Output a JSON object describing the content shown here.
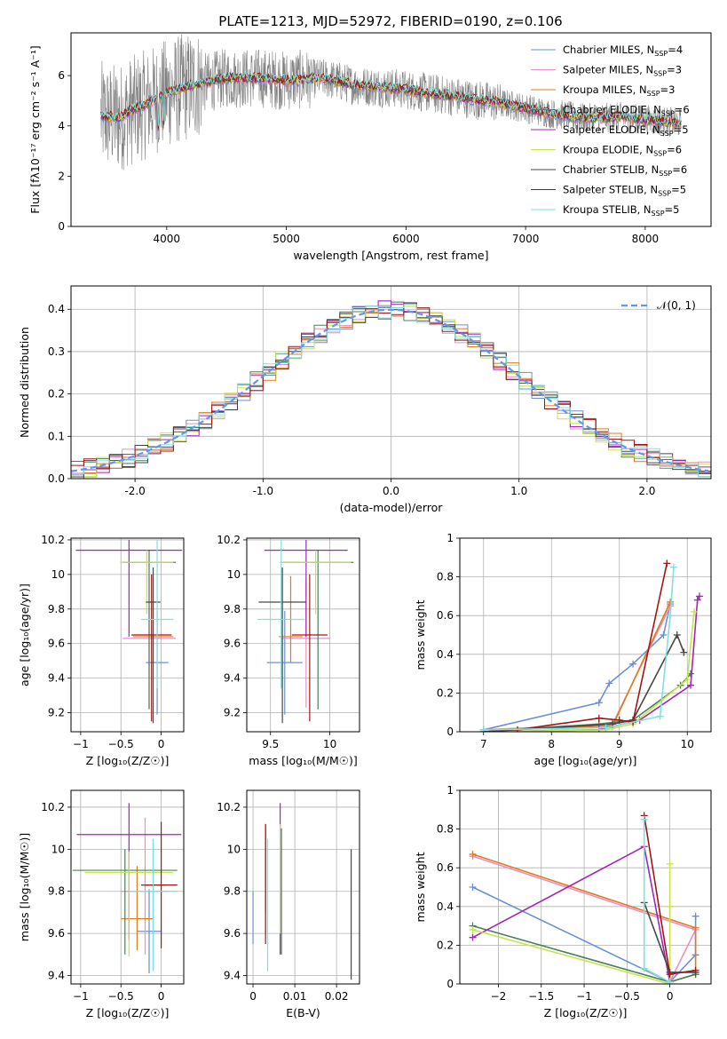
{
  "title": "PLATE=1213, MJD=52972, FIBERID=0190, z=0.106",
  "colors": {
    "axis": "#000000",
    "grid": "#b0b0b0",
    "data_spectrum": "#808080",
    "normal_curve": "#6495ed"
  },
  "models": [
    {
      "name": "Chabrier MILES",
      "nssp": "4",
      "color": "#6a8fd9"
    },
    {
      "name": "Salpeter MILES",
      "nssp": "3",
      "color": "#e68fc8"
    },
    {
      "name": "Kroupa MILES",
      "nssp": "3",
      "color": "#e07b1a"
    },
    {
      "name": "Chabrier ELODIE",
      "nssp": "6",
      "color": "#4a7f5a"
    },
    {
      "name": "Salpeter ELODIE",
      "nssp": "5",
      "color": "#a324b8"
    },
    {
      "name": "Kroupa ELODIE",
      "nssp": "6",
      "color": "#c5e34a"
    },
    {
      "name": "Chabrier STELIB",
      "nssp": "6",
      "color": "#474747"
    },
    {
      "name": "Salpeter STELIB",
      "nssp": "5",
      "color": "#a31515"
    },
    {
      "name": "Kroupa STELIB",
      "nssp": "5",
      "color": "#7fe0e0"
    }
  ],
  "chart_data": [
    {
      "id": "spectrum",
      "type": "line",
      "xlabel": "wavelength [Angstrom, rest frame]",
      "ylabel": "Flux [fλ10⁻¹⁷ erg cm⁻² s⁻¹ A⁻¹]",
      "xlim": [
        3200,
        8550
      ],
      "ylim": [
        0,
        7.7
      ],
      "xticks": [
        4000,
        5000,
        6000,
        7000,
        8000
      ],
      "yticks": [
        0,
        2,
        4,
        6
      ],
      "grid": false,
      "legend": "right",
      "continuum": {
        "x": [
          3450,
          3600,
          3700,
          3850,
          4000,
          4200,
          4500,
          4800,
          5000,
          5300,
          5600,
          5900,
          6200,
          6500,
          6800,
          7000,
          7200,
          7500,
          7800,
          8100,
          8300
        ],
        "y": [
          4.4,
          4.3,
          4.6,
          4.9,
          5.3,
          5.6,
          5.9,
          5.9,
          5.8,
          5.9,
          5.6,
          5.5,
          5.3,
          5.1,
          4.9,
          4.7,
          4.5,
          4.3,
          4.35,
          4.2,
          4.1
        ]
      }
    },
    {
      "id": "residuals",
      "type": "line",
      "xlabel": "(data-model)/error",
      "ylabel": "Normed distribution",
      "xlim": [
        -2.5,
        2.5
      ],
      "ylim": [
        0,
        0.455
      ],
      "xticks": [
        -2,
        -1,
        0,
        1,
        2
      ],
      "yticks": [
        0.0,
        0.1,
        0.2,
        0.3,
        0.4
      ],
      "grid": true,
      "legend": "top-right",
      "normal_label": "𝒩(0, 1)",
      "bin_width": 0.1
    },
    {
      "id": "age_vs_Z",
      "type": "scatter",
      "xlabel": "Z [log₁₀(Z/Z☉)]",
      "ylabel": "age  [log₁₀(age/yr)]",
      "xlim": [
        -1.12,
        0.28
      ],
      "ylim": [
        9.09,
        10.21
      ],
      "xticks": [
        -1.0,
        -0.5,
        0.0
      ],
      "yticks": [
        9.2,
        9.4,
        9.6,
        9.8,
        10.0,
        10.2
      ],
      "grid": true,
      "points": [
        {
          "x": -0.05,
          "y": 9.49,
          "xerr": 0.14,
          "yerr": [
            0.3,
            0.3
          ]
        },
        {
          "x": -0.15,
          "y": 9.63,
          "xerr": 0.33,
          "yerr": [
            0.4,
            0.35
          ]
        },
        {
          "x": -0.1,
          "y": 9.64,
          "xerr": 0.25,
          "yerr": [
            0.15,
            0.35
          ]
        },
        {
          "x": -0.15,
          "y": 10.07,
          "xerr": 0.33,
          "yerr": [
            0.85,
            0.07
          ]
        },
        {
          "x": -0.4,
          "y": 10.14,
          "xerr": 0.66,
          "yerr": [
            0.5,
            0.06
          ]
        },
        {
          "x": -0.18,
          "y": 10.07,
          "xerr": 0.33,
          "yerr": [
            0.3,
            0.07
          ]
        },
        {
          "x": -0.1,
          "y": 9.84,
          "xerr": 0.09,
          "yerr": [
            0.7,
            0.2
          ]
        },
        {
          "x": -0.12,
          "y": 9.65,
          "xerr": 0.25,
          "yerr": [
            0.5,
            0.35
          ]
        },
        {
          "x": -0.05,
          "y": 9.74,
          "xerr": 0.2,
          "yerr": [
            0.4,
            0.46
          ]
        }
      ]
    },
    {
      "id": "age_vs_mass",
      "type": "scatter",
      "xlabel": "mass [log₁₀(M/M☉)]",
      "ylabel": "",
      "xlim": [
        9.3,
        10.25
      ],
      "ylim": [
        9.09,
        10.21
      ],
      "xticks": [
        9.5,
        10.0
      ],
      "yticks": [
        9.2,
        9.4,
        9.6,
        9.8,
        10.0,
        10.2
      ],
      "grid": true,
      "points": [
        {
          "x": 9.62,
          "y": 9.49,
          "xerr": 0.15,
          "yerr": [
            0.3,
            0.3
          ]
        },
        {
          "x": 9.8,
          "y": 9.63,
          "xerr": 0.2,
          "yerr": [
            0.4,
            0.35
          ]
        },
        {
          "x": 9.67,
          "y": 9.64,
          "xerr": 0.1,
          "yerr": [
            0.15,
            0.35
          ]
        },
        {
          "x": 9.9,
          "y": 10.07,
          "xerr": 0.3,
          "yerr": [
            0.85,
            0.07
          ]
        },
        {
          "x": 9.8,
          "y": 10.14,
          "xerr": 0.35,
          "yerr": [
            0.5,
            0.06
          ]
        },
        {
          "x": 9.88,
          "y": 10.07,
          "xerr": 0.3,
          "yerr": [
            0.3,
            0.07
          ]
        },
        {
          "x": 9.6,
          "y": 9.84,
          "xerr": 0.2,
          "yerr": [
            0.7,
            0.2
          ]
        },
        {
          "x": 9.83,
          "y": 9.65,
          "xerr": 0.15,
          "yerr": [
            0.5,
            0.35
          ]
        },
        {
          "x": 9.59,
          "y": 9.74,
          "xerr": 0.2,
          "yerr": [
            0.4,
            0.46
          ]
        }
      ]
    },
    {
      "id": "massweight_vs_age",
      "type": "line",
      "xlabel": "age  [log₁₀(age/yr)]",
      "ylabel": "mass weight",
      "xlim": [
        6.65,
        10.35
      ],
      "ylim": [
        0,
        1.0
      ],
      "xticks": [
        7,
        8,
        9,
        10
      ],
      "yticks": [
        0.0,
        0.2,
        0.4,
        0.6,
        0.8,
        1.0
      ],
      "grid": true,
      "series": [
        {
          "x": [
            7.0,
            8.7,
            8.85,
            9.2,
            9.65,
            9.75
          ],
          "y": [
            0.01,
            0.15,
            0.25,
            0.35,
            0.5,
            0.66
          ]
        },
        {
          "x": [
            7.0,
            8.9,
            9.75
          ],
          "y": [
            0.01,
            0.04,
            0.65
          ]
        },
        {
          "x": [
            7.0,
            8.9,
            9.75
          ],
          "y": [
            0.01,
            0.03,
            0.67
          ]
        },
        {
          "x": [
            7.0,
            8.7,
            9.2,
            9.9,
            10.05
          ],
          "y": [
            0.0,
            0.04,
            0.06,
            0.24,
            0.3
          ]
        },
        {
          "x": [
            7.0,
            8.7,
            9.3,
            10.05,
            10.15,
            10.18
          ],
          "y": [
            0.0,
            0.01,
            0.06,
            0.24,
            0.68,
            0.7
          ]
        },
        {
          "x": [
            7.0,
            8.8,
            9.2,
            10.0,
            10.1
          ],
          "y": [
            0.0,
            0.01,
            0.04,
            0.27,
            0.62
          ]
        },
        {
          "x": [
            7.0,
            8.9,
            9.2,
            9.85,
            9.95
          ],
          "y": [
            0.0,
            0.04,
            0.06,
            0.5,
            0.41
          ]
        },
        {
          "x": [
            7.5,
            8.7,
            9.0,
            9.2,
            9.7
          ],
          "y": [
            0.01,
            0.07,
            0.06,
            0.05,
            0.87
          ]
        },
        {
          "x": [
            7.0,
            8.8,
            9.6,
            9.75,
            9.8
          ],
          "y": [
            0.01,
            0.02,
            0.08,
            0.6,
            0.85
          ]
        }
      ]
    },
    {
      "id": "mass_vs_Z",
      "type": "scatter",
      "xlabel": "Z [log₁₀(Z/Z☉)]",
      "ylabel": "mass [log₁₀(M/M☉)]",
      "xlim": [
        -1.12,
        0.28
      ],
      "ylim": [
        9.36,
        10.28
      ],
      "xticks": [
        -1.0,
        -0.5,
        0.0
      ],
      "yticks": [
        9.4,
        9.6,
        9.8,
        10.0,
        10.2
      ],
      "grid": true,
      "points": [
        {
          "x": -0.15,
          "y": 9.61,
          "xerr": 0.15,
          "yerr": [
            0.2,
            0.2
          ]
        },
        {
          "x": -0.2,
          "y": 9.8,
          "xerr": 0.3,
          "yerr": [
            0.3,
            0.35
          ]
        },
        {
          "x": -0.3,
          "y": 9.67,
          "xerr": 0.2,
          "yerr": [
            0.15,
            0.25
          ]
        },
        {
          "x": -0.45,
          "y": 9.9,
          "xerr": 0.65,
          "yerr": [
            0.4,
            0.1
          ]
        },
        {
          "x": -0.4,
          "y": 10.07,
          "xerr": 0.65,
          "yerr": [
            0.5,
            0.15
          ]
        },
        {
          "x": -0.4,
          "y": 9.89,
          "xerr": 0.55,
          "yerr": [
            0.4,
            0.1
          ]
        },
        {
          "x": -0.1,
          "y": 9.83,
          "xerr": 0.15,
          "yerr": [
            0.4,
            0.2
          ]
        },
        {
          "x": 0.0,
          "y": 9.83,
          "xerr": 0.2,
          "yerr": [
            0.3,
            0.3
          ]
        },
        {
          "x": -0.1,
          "y": 9.8,
          "xerr": 0.3,
          "yerr": [
            0.38,
            0.25
          ]
        }
      ]
    },
    {
      "id": "mass_vs_EBV",
      "type": "scatter",
      "xlabel": "E(B-V)",
      "ylabel": "",
      "xlim": [
        -0.0015,
        0.0255
      ],
      "ylim": [
        9.36,
        10.28
      ],
      "xticks": [
        0.0,
        0.01,
        0.02
      ],
      "yticks": [
        9.4,
        9.6,
        9.8,
        10.0,
        10.2
      ],
      "grid": true,
      "points": [
        {
          "x": 0.0,
          "y": 9.65,
          "yerr": [
            0.1,
            0.15
          ]
        },
        {
          "x": 0.003,
          "y": 9.8,
          "yerr": [
            0.2,
            0.3
          ]
        },
        {
          "x": 0.003,
          "y": 9.85,
          "yerr": [
            0.15,
            0.27
          ]
        },
        {
          "x": 0.0068,
          "y": 9.9,
          "yerr": [
            0.4,
            0.2
          ]
        },
        {
          "x": 0.0065,
          "y": 10.0,
          "yerr": [
            0.5,
            0.22
          ]
        },
        {
          "x": 0.0065,
          "y": 9.85,
          "yerr": [
            0.25,
            0.27
          ]
        },
        {
          "x": 0.0235,
          "y": 9.8,
          "yerr": [
            0.42,
            0.2
          ]
        },
        {
          "x": 0.003,
          "y": 9.9,
          "yerr": [
            0.35,
            0.22
          ]
        },
        {
          "x": 0.0035,
          "y": 9.75,
          "yerr": [
            0.33,
            0.3
          ]
        }
      ]
    },
    {
      "id": "massweight_vs_Z",
      "type": "line",
      "xlabel": "Z [log₁₀(Z/Z☉)]",
      "ylabel": "mass weight",
      "xlim": [
        -2.45,
        0.48
      ],
      "ylim": [
        0,
        1.0
      ],
      "xticks": [
        -2.0,
        -1.5,
        -1.0,
        -0.5,
        0.0
      ],
      "yticks": [
        0.0,
        0.2,
        0.4,
        0.6,
        0.8,
        1.0
      ],
      "grid": true,
      "series": [
        {
          "x": [
            -2.3,
            0.0,
            0.3,
            0.3
          ],
          "y": [
            0.5,
            0.01,
            0.15,
            0.35
          ]
        },
        {
          "x": [
            -2.3,
            0.3,
            0.0
          ],
          "y": [
            0.66,
            0.28,
            0.01
          ]
        },
        {
          "x": [
            -2.3,
            0.3,
            0.3,
            0.0
          ],
          "y": [
            0.67,
            0.29,
            0.05,
            0.01
          ]
        },
        {
          "x": [
            -2.3,
            0.0,
            0.3
          ],
          "y": [
            0.3,
            0.01,
            0.05
          ]
        },
        {
          "x": [
            -2.3,
            -0.3,
            0.0
          ],
          "y": [
            0.24,
            0.71,
            0.01
          ]
        },
        {
          "x": [
            -2.3,
            0.0,
            0.0,
            0.0
          ],
          "y": [
            0.28,
            0.0,
            0.4,
            0.62
          ]
        },
        {
          "x": [
            -0.3,
            0.0,
            0.3
          ],
          "y": [
            0.42,
            0.06,
            0.06
          ]
        },
        {
          "x": [
            -0.3,
            0.0,
            0.3
          ],
          "y": [
            0.87,
            0.05,
            0.07
          ]
        },
        {
          "x": [
            -0.3,
            -0.3,
            0.0
          ],
          "y": [
            0.85,
            0.08,
            0.01
          ]
        }
      ]
    }
  ]
}
